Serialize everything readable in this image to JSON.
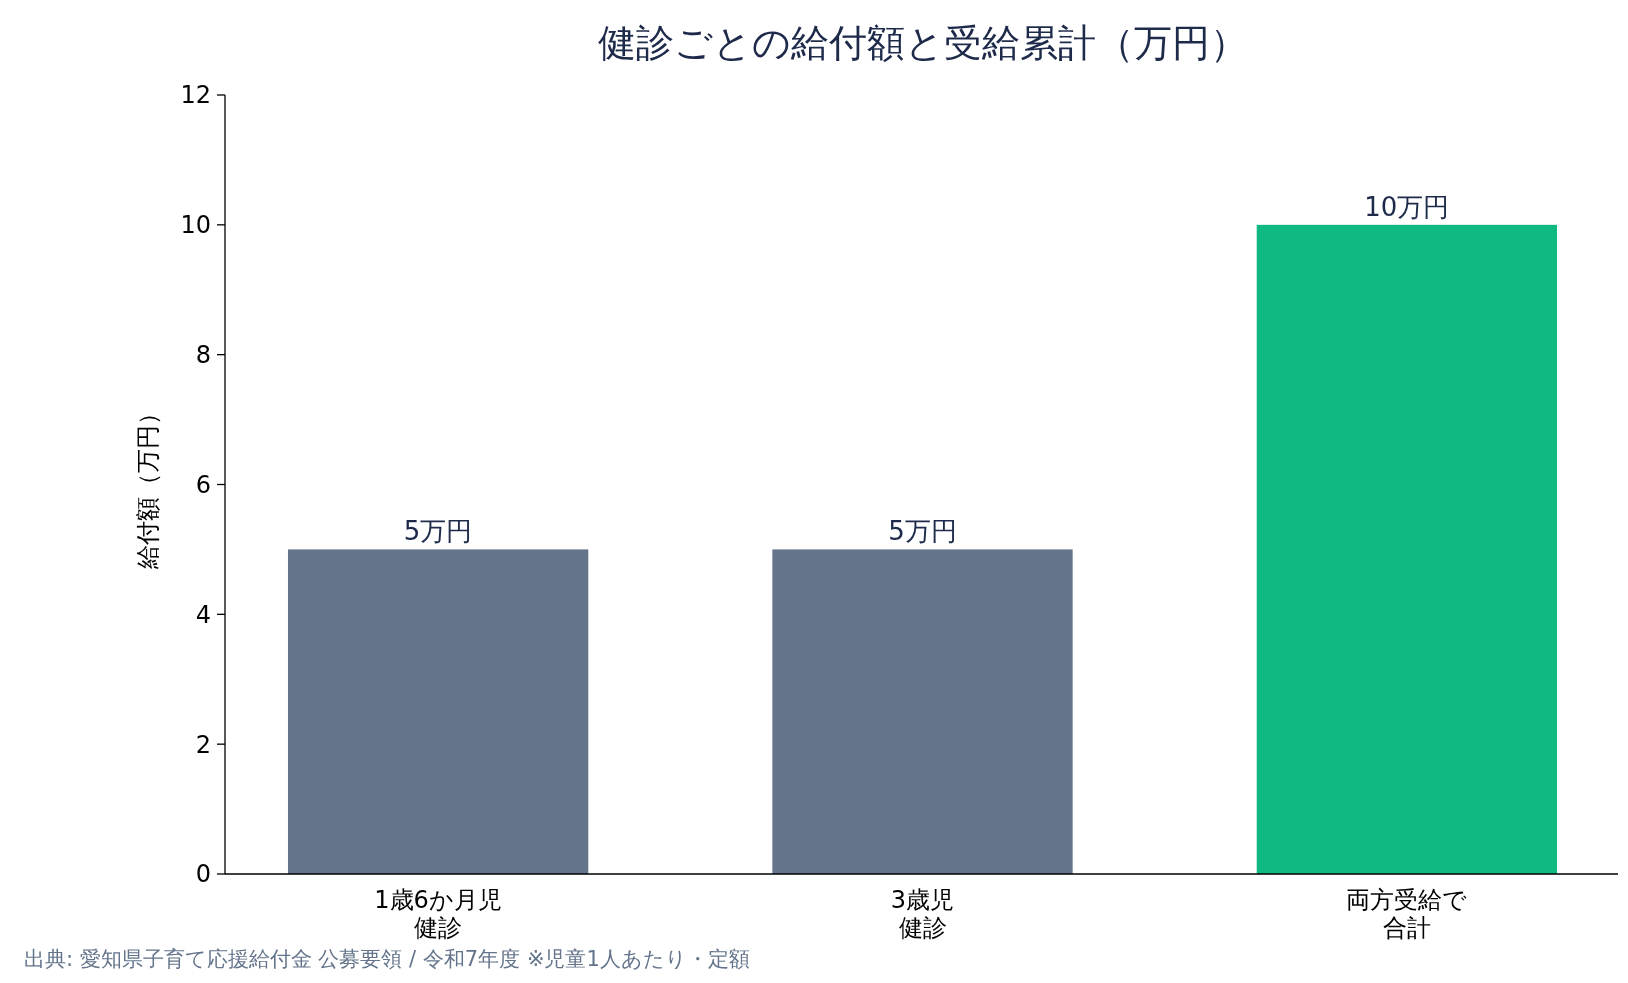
{
  "chart_data": {
    "type": "bar",
    "title": "健診ごとの給付額と受給累計（万円）",
    "ylabel": "給付額（万円）",
    "categories": [
      "1歳6か月児健診",
      "3歳児健診",
      "両方受給で合計"
    ],
    "values": [
      5,
      5,
      10
    ],
    "colors": [
      "#64748b",
      "#64748b",
      "#10b981"
    ],
    "value_labels": [
      "5万円",
      "5万円",
      "10万円"
    ],
    "ylim": [
      0,
      12
    ],
    "yticks": [
      0,
      2,
      4,
      6,
      8,
      10,
      12
    ],
    "grid": false,
    "annotations": [
      "出典: 愛知県子育て応援給付金 公募要領 / 令和7年度 ※児童1人あたり・定額"
    ]
  }
}
